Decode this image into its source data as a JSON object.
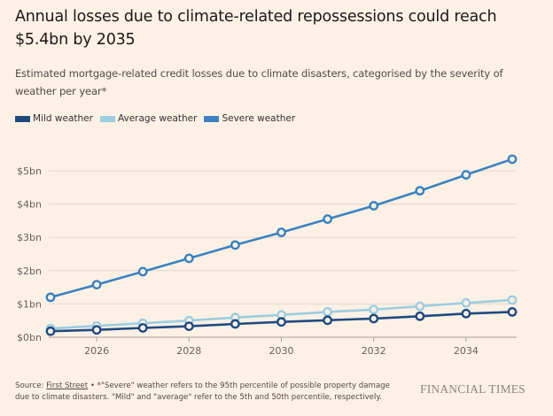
{
  "header": {
    "title": "Annual losses due to climate-related repossessions could reach $5.4bn by 2035",
    "subtitle": "Estimated mortgage-related credit losses due to climate disasters, categorised by the severity of weather per year*"
  },
  "footer": {
    "source_label": "Source: ",
    "source_link": "First Street",
    "note": " • *\"Severe\" weather refers to the 95th percentile of possible property damage due to climate disasters. \"Mild\" and \"average\" refer to the 5th and 50th percentile, respectively.",
    "brand": "FINANCIAL TIMES"
  },
  "colors": {
    "background": "#fdf1e6",
    "gridline": "#e3d7cc",
    "axis": "#a79f98"
  },
  "chart_data": {
    "type": "line",
    "title": "Annual losses due to climate-related repossessions could reach $5.4bn by 2035",
    "subtitle": "Estimated mortgage-related credit losses due to climate disasters, categorised by the severity of weather per year*",
    "xlabel": "",
    "ylabel": "",
    "x": [
      2025,
      2026,
      2027,
      2028,
      2029,
      2030,
      2031,
      2032,
      2033,
      2034,
      2035
    ],
    "xlim": [
      2025,
      2035
    ],
    "ylim": [
      0,
      5
    ],
    "x_ticks": [
      2026,
      2028,
      2030,
      2032,
      2034
    ],
    "x_tick_labels": [
      "2026",
      "2028",
      "2030",
      "2032",
      "2034"
    ],
    "y_ticks": [
      0,
      1,
      2,
      3,
      4,
      5
    ],
    "y_tick_labels": [
      "$0bn",
      "$1bn",
      "$2bn",
      "$3bn",
      "$4bn",
      "$5bn"
    ],
    "grid": true,
    "legend_position": "top-left",
    "units": "US$ bn",
    "series": [
      {
        "name": "Mild weather",
        "color": "#1f4a80",
        "values": [
          0.18,
          0.22,
          0.28,
          0.33,
          0.4,
          0.46,
          0.51,
          0.56,
          0.63,
          0.71,
          0.76
        ]
      },
      {
        "name": "Average weather",
        "color": "#9ccde0",
        "values": [
          0.26,
          0.34,
          0.42,
          0.5,
          0.59,
          0.67,
          0.76,
          0.83,
          0.93,
          1.03,
          1.12
        ]
      },
      {
        "name": "Severe weather",
        "color": "#3a82c0",
        "values": [
          1.2,
          1.58,
          1.97,
          2.37,
          2.77,
          3.15,
          3.55,
          3.95,
          4.4,
          4.88,
          5.35
        ]
      }
    ]
  }
}
